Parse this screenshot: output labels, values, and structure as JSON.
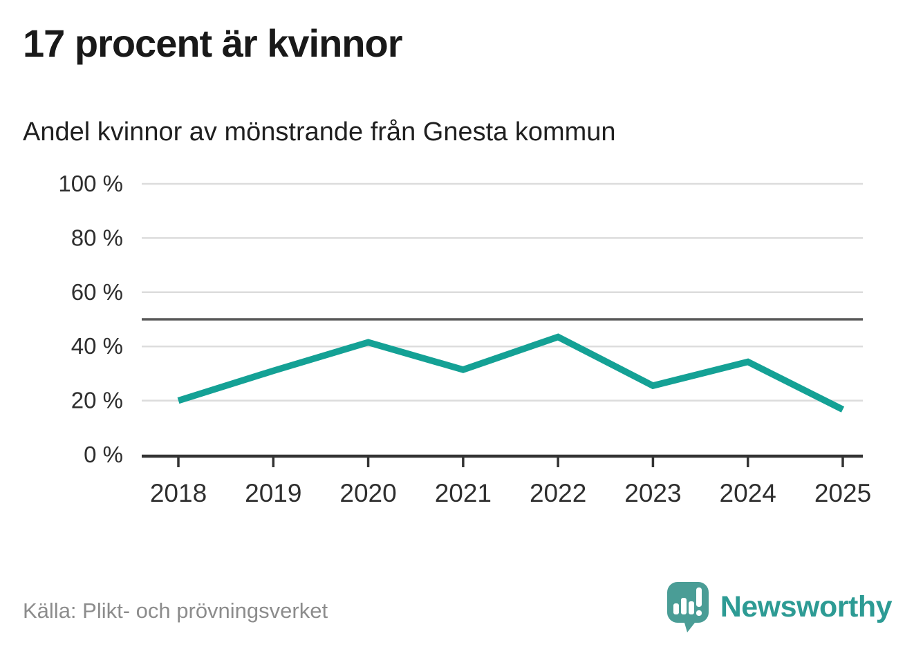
{
  "header": {
    "title": "17 procent är kvinnor",
    "subtitle": "Andel kvinnor av mönstrande från Gnesta kommun"
  },
  "chart_data": {
    "type": "line",
    "title": "17 procent är kvinnor",
    "subtitle": "Andel kvinnor av mönstrande från Gnesta kommun",
    "x": [
      "2018",
      "2019",
      "2020",
      "2021",
      "2022",
      "2023",
      "2024",
      "2025"
    ],
    "series": [
      {
        "name": "Andel kvinnor av mönstrande",
        "values": [
          20,
          31,
          41.5,
          31.4,
          43.5,
          25.5,
          34.3,
          16.7
        ]
      }
    ],
    "xlabel": "",
    "ylabel": "",
    "ylim": [
      0,
      100
    ],
    "y_ticks": [
      0,
      20,
      40,
      60,
      80,
      100
    ],
    "y_tick_suffix": " %",
    "reference_line": 50,
    "grid": true,
    "legend": "none",
    "colors": {
      "line": "#14a195",
      "grid": "#dcdcdc",
      "reference": "#595959",
      "axis": "#333333"
    }
  },
  "footer": {
    "source": "Källa: Plikt- och prövningsverket",
    "brand": "Newsworthy",
    "brand_icon": "newsworthy-speech-bubble-chart-icon",
    "brand_color": "#2d9b94",
    "brand_icon_color": "#4a9d96"
  }
}
